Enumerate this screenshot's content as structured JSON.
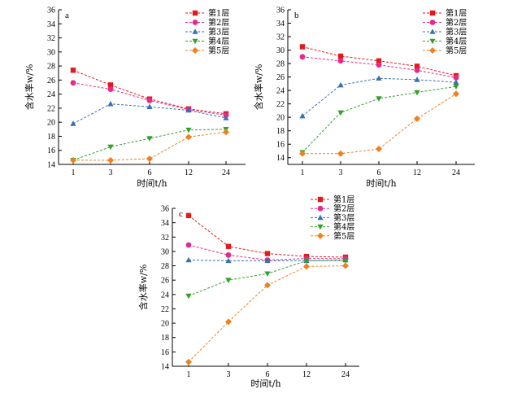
{
  "colors": {
    "s1": "#e31a1c",
    "s2": "#e7298a",
    "s3": "#3a6fb5",
    "s4": "#33a02c",
    "s5": "#f07f1c"
  },
  "chart_data": [
    {
      "type": "line",
      "panel_label": "a",
      "categories": [
        "1",
        "3",
        "6",
        "12",
        "24"
      ],
      "xlabel": "时间t/h",
      "ylabel": "含水率w/%",
      "ylim": [
        14,
        36
      ],
      "yticks": [
        14,
        16,
        18,
        20,
        22,
        24,
        26,
        28,
        30,
        32,
        34,
        36
      ],
      "legend_position": "top-right",
      "series": [
        {
          "name": "第1层",
          "marker": "square",
          "color": "#e31a1c",
          "values": [
            27.4,
            25.3,
            23.3,
            21.9,
            21.2
          ]
        },
        {
          "name": "第2层",
          "marker": "circle",
          "color": "#e7298a",
          "values": [
            25.6,
            24.7,
            23.1,
            21.8,
            21.0
          ]
        },
        {
          "name": "第3层",
          "marker": "triangle-up",
          "color": "#3a6fb5",
          "values": [
            19.8,
            22.6,
            22.2,
            21.7,
            20.6
          ]
        },
        {
          "name": "第4层",
          "marker": "triangle-down",
          "color": "#33a02c",
          "values": [
            14.6,
            16.5,
            17.7,
            18.9,
            19.0
          ]
        },
        {
          "name": "第5层",
          "marker": "diamond",
          "color": "#f07f1c",
          "values": [
            14.6,
            14.6,
            14.8,
            17.9,
            18.6
          ]
        }
      ]
    },
    {
      "type": "line",
      "panel_label": "b",
      "categories": [
        "1",
        "3",
        "6",
        "12",
        "24"
      ],
      "xlabel": "时间t/h",
      "ylabel": "含水率w/%",
      "ylim": [
        13,
        36
      ],
      "yticks": [
        14,
        16,
        18,
        20,
        22,
        24,
        26,
        28,
        30,
        32,
        34,
        36
      ],
      "legend_position": "top-right",
      "series": [
        {
          "name": "第1层",
          "marker": "square",
          "color": "#e31a1c",
          "values": [
            30.5,
            29.1,
            28.4,
            27.6,
            26.2
          ]
        },
        {
          "name": "第2层",
          "marker": "circle",
          "color": "#e7298a",
          "values": [
            29.0,
            28.4,
            27.8,
            27.0,
            25.9
          ]
        },
        {
          "name": "第3层",
          "marker": "triangle-up",
          "color": "#3a6fb5",
          "values": [
            20.2,
            24.8,
            25.8,
            25.6,
            25.2
          ]
        },
        {
          "name": "第4层",
          "marker": "triangle-down",
          "color": "#33a02c",
          "values": [
            14.8,
            20.7,
            22.8,
            23.7,
            24.6
          ]
        },
        {
          "name": "第5层",
          "marker": "diamond",
          "color": "#f07f1c",
          "values": [
            14.6,
            14.6,
            15.3,
            19.8,
            23.5
          ]
        }
      ]
    },
    {
      "type": "line",
      "panel_label": "c",
      "categories": [
        "1",
        "3",
        "6",
        "12",
        "24"
      ],
      "xlabel": "时间t/h",
      "ylabel": "含水率w/%",
      "ylim": [
        14,
        36
      ],
      "yticks": [
        14,
        16,
        18,
        20,
        22,
        24,
        26,
        28,
        30,
        32,
        34,
        36
      ],
      "legend_position": "top-right",
      "series": [
        {
          "name": "第1层",
          "marker": "square",
          "color": "#e31a1c",
          "values": [
            35.0,
            30.7,
            29.7,
            29.3,
            29.2
          ]
        },
        {
          "name": "第2层",
          "marker": "circle",
          "color": "#e7298a",
          "values": [
            30.9,
            29.5,
            28.8,
            29.0,
            29.0
          ]
        },
        {
          "name": "第3层",
          "marker": "triangle-up",
          "color": "#3a6fb5",
          "values": [
            28.8,
            28.7,
            28.7,
            28.7,
            28.8
          ]
        },
        {
          "name": "第4层",
          "marker": "triangle-down",
          "color": "#33a02c",
          "values": [
            23.8,
            26.0,
            26.9,
            28.7,
            28.7
          ]
        },
        {
          "name": "第5层",
          "marker": "diamond",
          "color": "#f07f1c",
          "values": [
            14.6,
            20.2,
            25.3,
            27.9,
            28.0
          ]
        }
      ]
    }
  ]
}
